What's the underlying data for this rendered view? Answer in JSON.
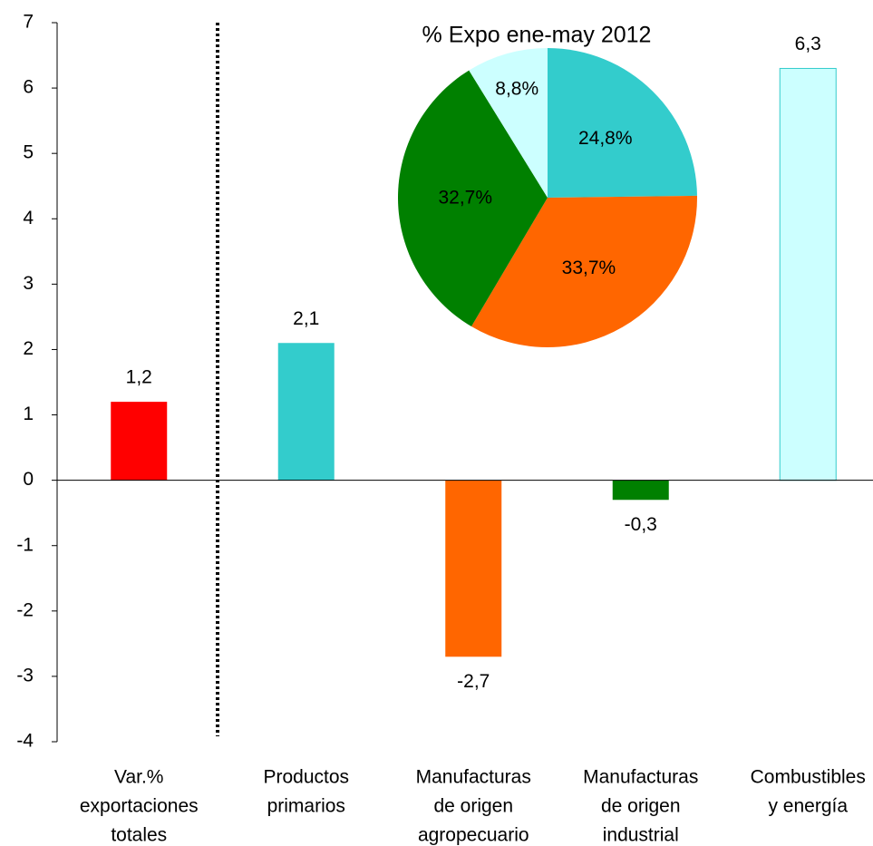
{
  "chart_data": [
    {
      "type": "bar",
      "categories": [
        [
          "Var.%",
          "exportaciones",
          "totales"
        ],
        [
          "Productos",
          "primarios"
        ],
        [
          "Manufacturas",
          "de origen",
          "agropecuario"
        ],
        [
          "Manufacturas",
          "de origen",
          "industrial"
        ],
        [
          "Combustibles",
          "y energía"
        ]
      ],
      "values": [
        1.2,
        2.1,
        -2.7,
        -0.3,
        6.3
      ],
      "value_labels": [
        "1,2",
        "2,1",
        "-2,7",
        "-0,3",
        "6,3"
      ],
      "colors": [
        "#ff0000",
        "#33cccc",
        "#ff6600",
        "#008000",
        "#ccffff"
      ],
      "ylim": [
        -4,
        7
      ],
      "yticks": [
        -4,
        -3,
        -2,
        -1,
        0,
        1,
        2,
        3,
        4,
        5,
        6,
        7
      ]
    },
    {
      "type": "pie",
      "title": "% Expo ene-may 2012",
      "values": [
        24.8,
        33.7,
        32.7,
        8.8
      ],
      "value_labels": [
        "24,8%",
        "33,7%",
        "32,7%",
        "8,8%"
      ],
      "colors": [
        "#33cccc",
        "#ff6600",
        "#008000",
        "#ccffff"
      ]
    }
  ]
}
